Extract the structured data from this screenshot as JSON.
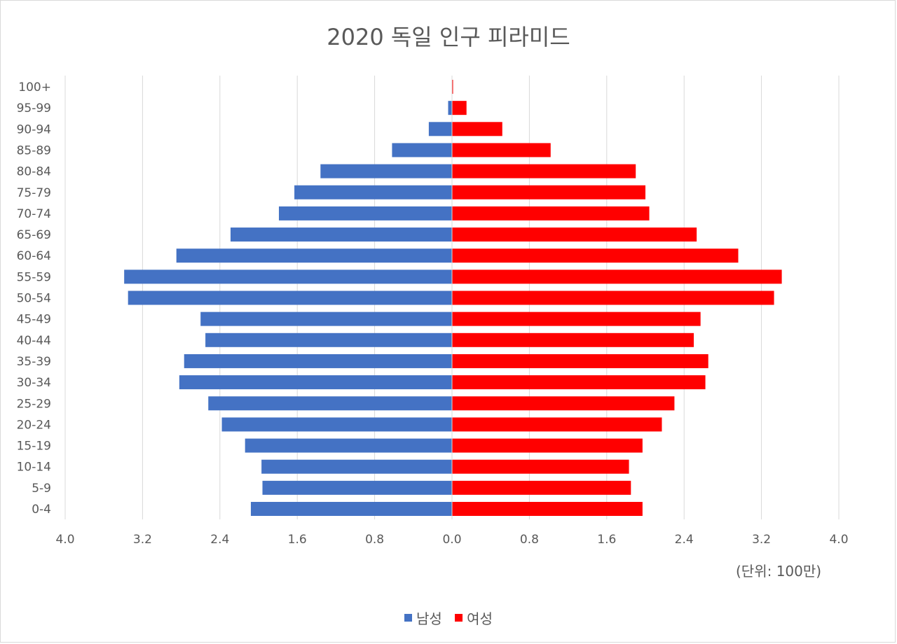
{
  "chart_data": {
    "type": "bar",
    "orientation": "horizontal",
    "title": "2020 독일 인구 피라미드",
    "unit_note": "(단위: 100만)",
    "categories": [
      "100+",
      "95-99",
      "90-94",
      "85-89",
      "80-84",
      "75-79",
      "70-74",
      "65-69",
      "60-64",
      "55-59",
      "50-54",
      "45-49",
      "40-44",
      "35-39",
      "30-34",
      "25-29",
      "20-24",
      "15-19",
      "10-14",
      "5-9",
      "0-4"
    ],
    "series": [
      {
        "name": "남성",
        "color": "#4472c4",
        "values": [
          0.0,
          0.04,
          0.24,
          0.62,
          1.36,
          1.63,
          1.79,
          2.29,
          2.85,
          3.39,
          3.35,
          2.6,
          2.55,
          2.77,
          2.82,
          2.52,
          2.38,
          2.14,
          1.97,
          1.96,
          2.08
        ]
      },
      {
        "name": "여성",
        "color": "#ff0000",
        "values": [
          0.01,
          0.15,
          0.52,
          1.02,
          1.9,
          2.0,
          2.04,
          2.53,
          2.96,
          3.41,
          3.33,
          2.57,
          2.5,
          2.65,
          2.62,
          2.3,
          2.17,
          1.97,
          1.83,
          1.85,
          1.97
        ]
      }
    ],
    "xlim": [
      -4.0,
      4.0
    ],
    "x_ticks": [
      -4.0,
      -3.2,
      -2.4,
      -1.6,
      -0.8,
      0.0,
      0.8,
      1.6,
      2.4,
      3.2,
      4.0
    ],
    "x_tick_labels": [
      "4.0",
      "3.2",
      "2.4",
      "1.6",
      "0.8",
      "0.0",
      "0.8",
      "1.6",
      "2.4",
      "3.2",
      "4.0"
    ],
    "grid": true,
    "legend_position": "bottom"
  }
}
